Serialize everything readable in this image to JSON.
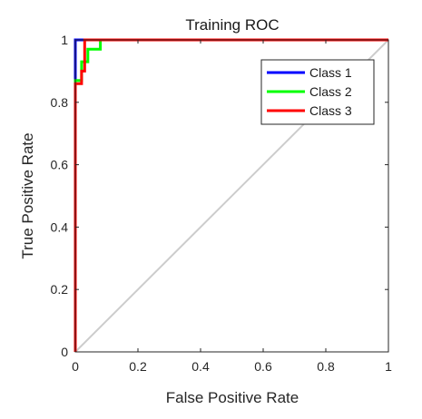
{
  "chart_data": {
    "type": "line",
    "title": "Training ROC",
    "xlabel": "False Positive Rate",
    "ylabel": "True Positive Rate",
    "xlim": [
      0,
      1
    ],
    "ylim": [
      0,
      1
    ],
    "xticks": [
      0,
      0.2,
      0.4,
      0.6,
      0.8,
      1
    ],
    "yticks": [
      0,
      0.2,
      0.4,
      0.6,
      0.8,
      1
    ],
    "xtick_labels": [
      "0",
      "0.2",
      "0.4",
      "0.6",
      "0.8",
      "1"
    ],
    "ytick_labels": [
      "0",
      "0.2",
      "0.4",
      "0.6",
      "0.8",
      "1"
    ],
    "grid": false,
    "legend_position": "top-right",
    "reference_line": {
      "x": [
        0,
        1
      ],
      "y": [
        0,
        1
      ],
      "color": "#cccccc"
    },
    "series": [
      {
        "name": "Class 1",
        "color": "#0000ff",
        "x": [
          0,
          0,
          0,
          0.02,
          0.02,
          1
        ],
        "y": [
          0,
          0.93,
          1,
          1,
          1,
          1
        ]
      },
      {
        "name": "Class 2",
        "color": "#00ff00",
        "x": [
          0,
          0,
          0.02,
          0.02,
          0.04,
          0.04,
          0.08,
          0.08,
          1
        ],
        "y": [
          0,
          0.87,
          0.87,
          0.93,
          0.93,
          0.97,
          0.97,
          1,
          1
        ]
      },
      {
        "name": "Class 3",
        "color": "#ff0000",
        "x": [
          0,
          0,
          0.02,
          0.02,
          0.03,
          0.03,
          1
        ],
        "y": [
          0,
          0.86,
          0.86,
          0.9,
          0.9,
          1,
          1
        ]
      }
    ]
  }
}
